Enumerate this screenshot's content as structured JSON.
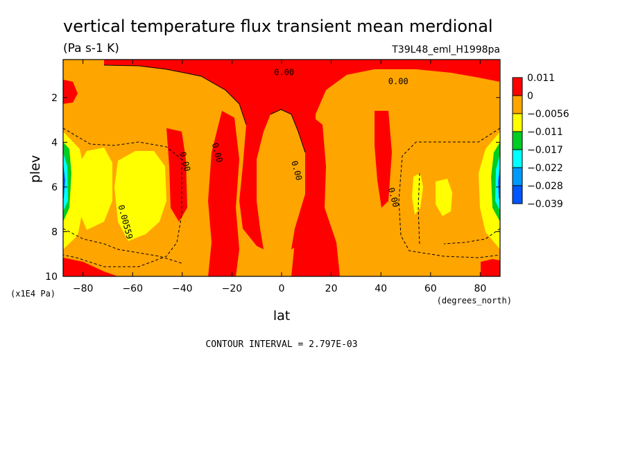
{
  "chart_data": {
    "type": "heatmap",
    "title": "vertical temperature flux transient mean merdional",
    "subtitle": "(Pa s-1 K)",
    "run_label": "T39L48_eml_H1998pa",
    "xlabel": "lat",
    "xunits": "(degrees_north)",
    "ylabel": "plev",
    "yunits": "(x1E4 Pa)",
    "xlim": [
      -88,
      88
    ],
    "ylim": [
      10,
      0.3
    ],
    "x_ticks": [
      -80,
      -60,
      -40,
      -20,
      0,
      20,
      40,
      60,
      80
    ],
    "x_tick_labels": [
      "−80",
      "−60",
      "−40",
      "−20",
      "0",
      "20",
      "40",
      "60",
      "80"
    ],
    "y_ticks": [
      2,
      4,
      6,
      8,
      10
    ],
    "y_tick_labels": [
      "2",
      "4",
      "6",
      "8",
      "10"
    ],
    "footer": "CONTOUR INTERVAL = 2.797E-03",
    "colorbar": {
      "labels": [
        "0.011",
        "0",
        "−0.0056",
        "−0.011",
        "−0.017",
        "−0.022",
        "−0.028",
        "−0.039"
      ],
      "colors": [
        "#ff0000",
        "#ffa500",
        "#ffff00",
        "#00cc22",
        "#00ffff",
        "#0099ff",
        "#0055ff"
      ]
    },
    "contour_labels": [
      {
        "text": "0.00",
        "lat": 1,
        "plev": 1.0
      },
      {
        "text": "0.00",
        "lat": 47,
        "plev": 1.4
      },
      {
        "text": "0.00",
        "lat": -40,
        "plev": 4.9
      },
      {
        "text": "0.00",
        "lat": -27,
        "plev": 4.5
      },
      {
        "text": "0.00",
        "lat": 5,
        "plev": 5.3
      },
      {
        "text": "0.00",
        "lat": 44,
        "plev": 6.5
      },
      {
        "text": "0.00559",
        "lat": -64,
        "plev": 7.6
      }
    ],
    "grid": false,
    "legend_position": "right"
  }
}
